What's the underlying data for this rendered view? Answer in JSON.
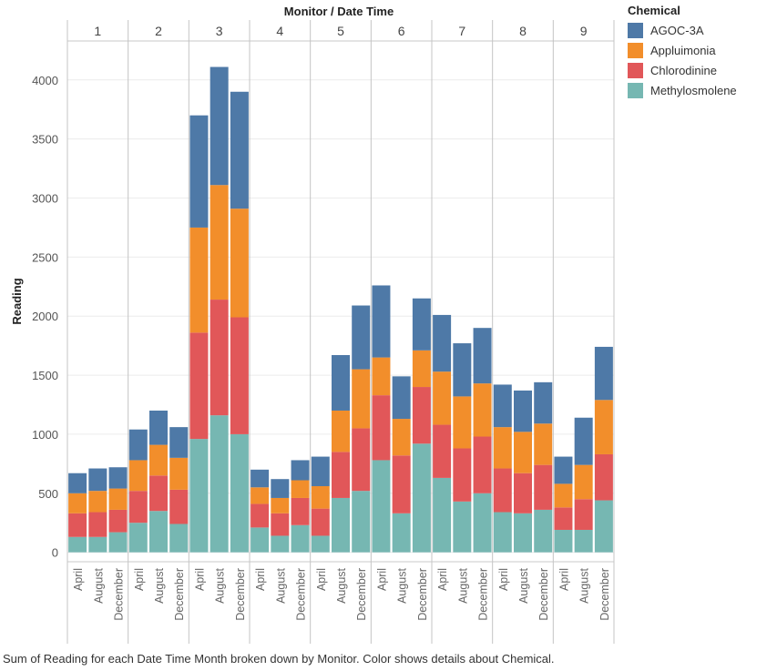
{
  "chart_data": {
    "type": "bar",
    "stacked": true,
    "header_title": "Monitor  /  Date Time",
    "ylabel": "Reading",
    "ylim": [
      -80,
      4330
    ],
    "yticks": [
      0,
      500,
      1000,
      1500,
      2000,
      2500,
      3000,
      3500,
      4000
    ],
    "grid": true,
    "legend_position": "right",
    "legend_title": "Chemical",
    "panels": [
      "1",
      "2",
      "3",
      "4",
      "5",
      "6",
      "7",
      "8",
      "9"
    ],
    "categories": [
      "April",
      "August",
      "December"
    ],
    "series": [
      {
        "name": "Methylosmolene",
        "color": "#76b7b2",
        "values": [
          [
            130,
            130,
            170
          ],
          [
            250,
            350,
            240
          ],
          [
            960,
            1160,
            1000
          ],
          [
            210,
            140,
            230
          ],
          [
            140,
            460,
            520
          ],
          [
            780,
            330,
            920
          ],
          [
            630,
            430,
            500
          ],
          [
            340,
            330,
            360
          ],
          [
            190,
            190,
            440
          ]
        ]
      },
      {
        "name": "Chlorodinine",
        "color": "#e15759",
        "values": [
          [
            200,
            210,
            190
          ],
          [
            270,
            300,
            290
          ],
          [
            900,
            980,
            990
          ],
          [
            200,
            190,
            230
          ],
          [
            230,
            390,
            530
          ],
          [
            550,
            490,
            480
          ],
          [
            450,
            450,
            480
          ],
          [
            370,
            340,
            380
          ],
          [
            190,
            260,
            390
          ]
        ]
      },
      {
        "name": "Appluimonia",
        "color": "#f28e2b",
        "values": [
          [
            170,
            180,
            180
          ],
          [
            260,
            260,
            270
          ],
          [
            890,
            970,
            920
          ],
          [
            140,
            130,
            150
          ],
          [
            190,
            350,
            500
          ],
          [
            320,
            310,
            310
          ],
          [
            450,
            440,
            450
          ],
          [
            350,
            350,
            350
          ],
          [
            200,
            290,
            460
          ]
        ]
      },
      {
        "name": "AGOC-3A",
        "color": "#4e79a7",
        "values": [
          [
            170,
            190,
            180
          ],
          [
            260,
            290,
            260
          ],
          [
            950,
            1000,
            990
          ],
          [
            150,
            160,
            170
          ],
          [
            250,
            470,
            540
          ],
          [
            610,
            360,
            440
          ],
          [
            480,
            450,
            470
          ],
          [
            360,
            350,
            350
          ],
          [
            230,
            400,
            450
          ]
        ]
      }
    ]
  },
  "caption": "Sum of Reading for each Date Time Month broken down by Monitor.  Color shows details about Chemical."
}
